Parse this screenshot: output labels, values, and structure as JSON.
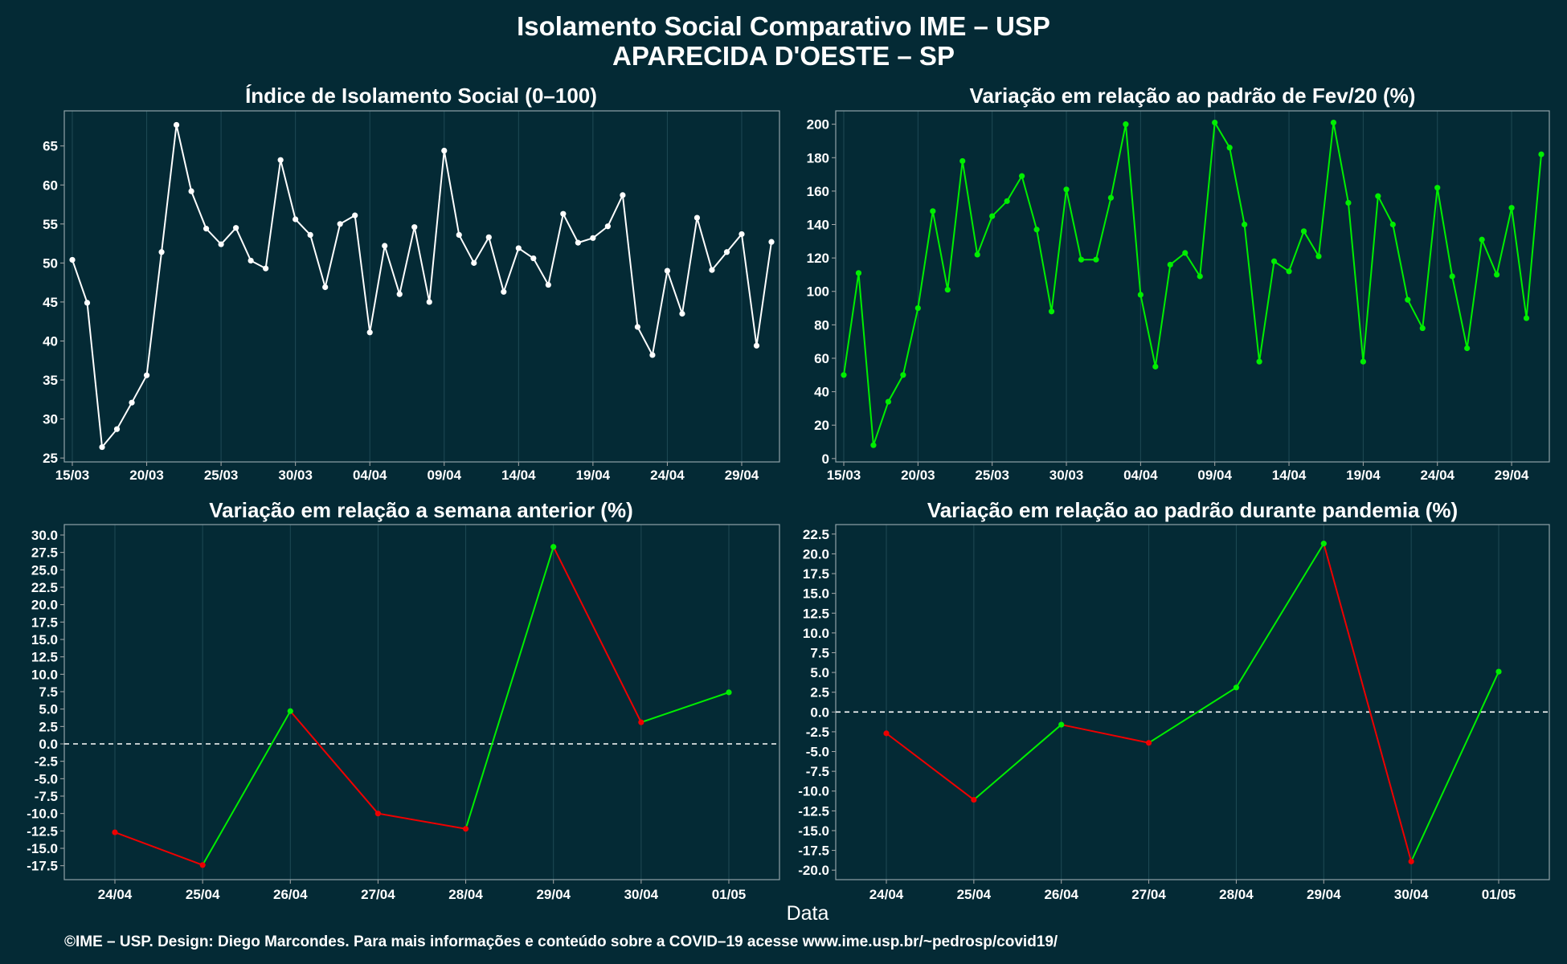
{
  "header": {
    "title": "Isolamento Social Comparativo IME – USP",
    "subtitle": "APARECIDA D'OESTE – SP"
  },
  "footer": {
    "xlabel": "Data",
    "credit": "©IME – USP. Design: Diego Marcondes. Para mais informações e conteúdo sobre a COVID–19 acesse www.ime.usp.br/~pedrosp/covid19/"
  },
  "colors": {
    "background": "#042a35",
    "white_series": "#ffffff",
    "positive": "#00ee00",
    "negative": "#ee0000",
    "axis_text": "#ffffff",
    "grid": "#1f4a55"
  },
  "chart_data": [
    {
      "type": "line",
      "title": "Índice de Isolamento Social (0–100)",
      "x_start": "2020-03-15",
      "x_tick_labels": [
        "15/03",
        "20/03",
        "25/03",
        "30/03",
        "04/04",
        "09/04",
        "14/04",
        "19/04",
        "24/04",
        "29/04"
      ],
      "values": [
        50.4,
        44.9,
        26.4,
        28.7,
        32.1,
        35.6,
        51.4,
        67.7,
        59.2,
        54.4,
        52.4,
        54.5,
        50.3,
        49.3,
        63.2,
        55.6,
        53.6,
        46.9,
        55.0,
        56.1,
        41.1,
        52.2,
        46.0,
        54.6,
        45.0,
        64.4,
        53.6,
        50.0,
        53.3,
        46.3,
        51.9,
        50.6,
        47.2,
        56.3,
        52.6,
        53.2,
        54.7,
        58.7,
        41.8,
        38.2,
        49.0,
        43.5,
        55.8,
        49.1,
        51.4,
        53.7,
        39.4,
        52.7
      ],
      "ylim": [
        24.5,
        69.5
      ],
      "yticks": [
        25,
        30,
        35,
        40,
        45,
        50,
        55,
        60,
        65
      ],
      "color": "#ffffff"
    },
    {
      "type": "line",
      "title": "Variação em relação ao padrão de Fev/20 (%)",
      "x_start": "2020-03-15",
      "x_tick_labels": [
        "15/03",
        "20/03",
        "25/03",
        "30/03",
        "04/04",
        "09/04",
        "14/04",
        "19/04",
        "24/04",
        "29/04"
      ],
      "values": [
        50,
        111,
        8,
        34,
        50,
        90,
        148,
        101,
        178,
        122,
        145,
        154,
        169,
        137,
        88,
        161,
        119,
        119,
        156,
        200,
        98,
        55,
        116,
        123,
        109,
        201,
        186,
        140,
        58,
        118,
        112,
        136,
        121,
        201,
        153,
        58,
        157,
        140,
        95,
        78,
        162,
        109,
        66,
        131,
        110,
        150,
        84,
        182
      ],
      "ylim": [
        -2,
        208
      ],
      "yticks": [
        0,
        20,
        40,
        60,
        80,
        100,
        120,
        140,
        160,
        180,
        200
      ],
      "color": "#00ee00"
    },
    {
      "type": "line",
      "title": "Variação em relação a semana anterior (%)",
      "categories": [
        "24/04",
        "25/04",
        "26/04",
        "27/04",
        "28/04",
        "29/04",
        "30/04",
        "01/05"
      ],
      "values": [
        -12.7,
        -17.4,
        4.7,
        -10.0,
        -12.2,
        28.3,
        3.1,
        7.4
      ],
      "ylim": [
        -19.5,
        31.5
      ],
      "yticks": [
        -17.5,
        -15.0,
        -12.5,
        -10.0,
        -7.5,
        -5.0,
        -2.5,
        0.0,
        2.5,
        5.0,
        7.5,
        10.0,
        12.5,
        15.0,
        17.5,
        20.0,
        22.5,
        25.0,
        27.5,
        30.0
      ],
      "reference_line": 0,
      "colors": {
        "up": "#00ee00",
        "down": "#ee0000"
      }
    },
    {
      "type": "line",
      "title": "Variação em relação ao padrão durante pandemia (%)",
      "categories": [
        "24/04",
        "25/04",
        "26/04",
        "27/04",
        "28/04",
        "29/04",
        "30/04",
        "01/05"
      ],
      "values": [
        -2.7,
        -11.1,
        -1.6,
        -3.9,
        3.1,
        21.3,
        -18.9,
        5.1
      ],
      "ylim": [
        -21.2,
        23.7
      ],
      "yticks": [
        -20.0,
        -17.5,
        -15.0,
        -12.5,
        -10.0,
        -7.5,
        -5.0,
        -2.5,
        0.0,
        2.5,
        5.0,
        7.5,
        10.0,
        12.5,
        15.0,
        17.5,
        20.0,
        22.5
      ],
      "reference_line": 0,
      "colors": {
        "up": "#00ee00",
        "down": "#ee0000"
      }
    }
  ]
}
